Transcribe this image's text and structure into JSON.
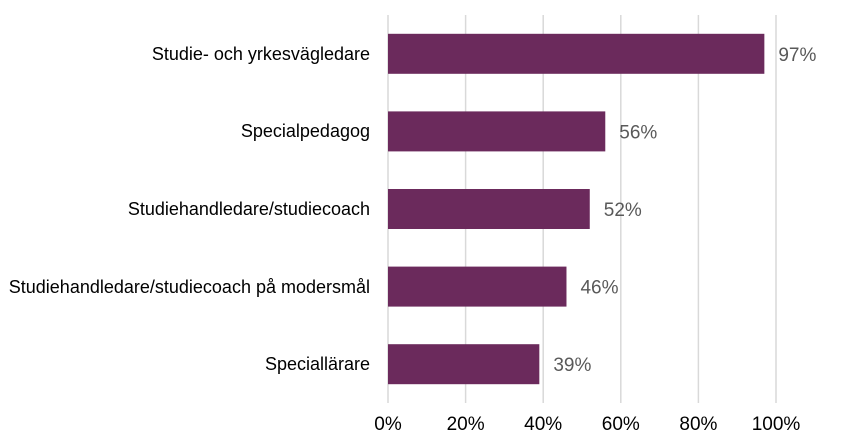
{
  "chart_data": {
    "type": "bar",
    "orientation": "horizontal",
    "categories": [
      "Studie- och yrkesvägledare",
      "Specialpedagog",
      "Studiehandledare/studiecoach",
      "Studiehandledare/studiecoach på modersmål",
      "Speciallärare"
    ],
    "values": [
      97,
      56,
      52,
      46,
      39
    ],
    "value_labels": [
      "97%",
      "56%",
      "52%",
      "46%",
      "39%"
    ],
    "color": "#6b2a5c",
    "xlim": [
      0,
      100
    ],
    "xticks": [
      {
        "value": 0,
        "label": "0%"
      },
      {
        "value": 20,
        "label": "20%"
      },
      {
        "value": 40,
        "label": "40%"
      },
      {
        "value": 60,
        "label": "60%"
      },
      {
        "value": 80,
        "label": "80%"
      },
      {
        "value": 100,
        "label": "100%"
      }
    ],
    "grid": true
  }
}
